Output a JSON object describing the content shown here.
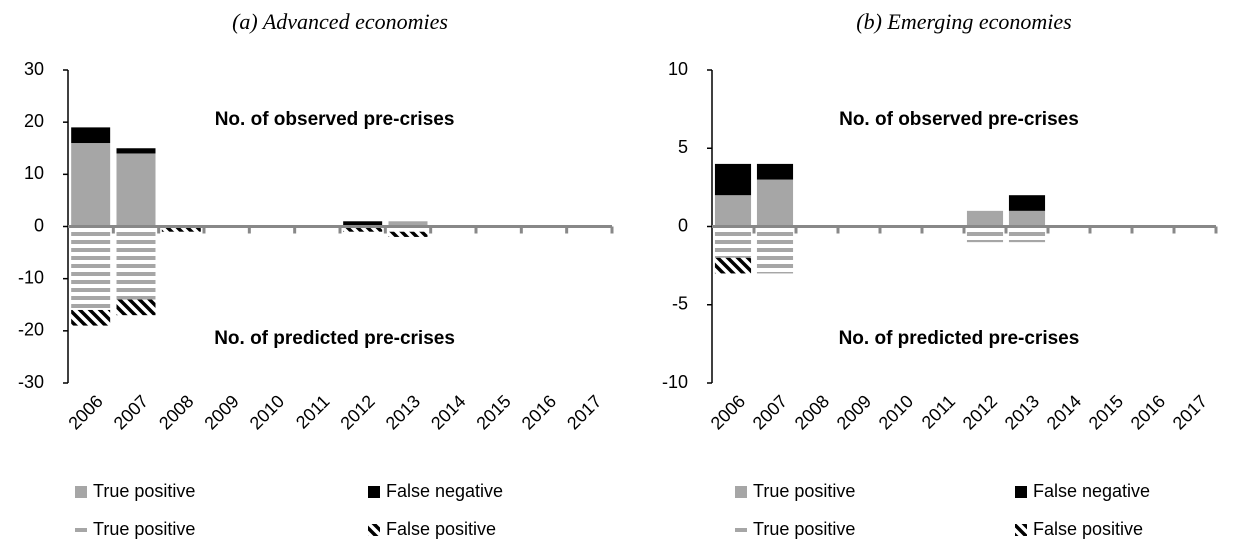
{
  "chart_data": [
    {
      "type": "bar",
      "stacked": true,
      "title": "(a) Advanced economies",
      "annotations": [
        "No. of observed pre-crises",
        "No. of predicted pre-crises"
      ],
      "categories": [
        "2006",
        "2007",
        "2008",
        "2009",
        "2010",
        "2011",
        "2012",
        "2013",
        "2014",
        "2015",
        "2016",
        "2017"
      ],
      "series": [
        {
          "name": "True positive",
          "color": "#a6a6a6",
          "values": [
            16,
            14,
            0,
            0,
            0,
            0,
            0,
            1,
            0,
            0,
            0,
            0
          ]
        },
        {
          "name": "False negative",
          "color": "#000000",
          "values": [
            3,
            1,
            0,
            0,
            0,
            0,
            1,
            0,
            0,
            0,
            0,
            0
          ]
        },
        {
          "name": "True positive",
          "color": "#a6a6a6",
          "pattern": "horizontal",
          "values": [
            -16,
            -14,
            0,
            0,
            0,
            0,
            0,
            -1,
            0,
            0,
            0,
            0
          ]
        },
        {
          "name": "False positive",
          "color": "#000000",
          "pattern": "diagonal",
          "values": [
            -3,
            -3,
            -1,
            0,
            0,
            0,
            -1,
            -1,
            0,
            0,
            0,
            0
          ]
        }
      ],
      "ylim": [
        -30,
        30
      ],
      "yticks": [
        30,
        20,
        10,
        0,
        -10,
        -20,
        -30
      ]
    },
    {
      "type": "bar",
      "stacked": true,
      "title": "(b) Emerging economies",
      "annotations": [
        "No. of observed pre-crises",
        "No. of predicted pre-crises"
      ],
      "categories": [
        "2006",
        "2007",
        "2008",
        "2009",
        "2010",
        "2011",
        "2012",
        "2013",
        "2014",
        "2015",
        "2016",
        "2017"
      ],
      "series": [
        {
          "name": "True positive",
          "color": "#a6a6a6",
          "values": [
            2,
            3,
            0,
            0,
            0,
            0,
            1,
            1,
            0,
            0,
            0,
            0
          ]
        },
        {
          "name": "False negative",
          "color": "#000000",
          "values": [
            2,
            1,
            0,
            0,
            0,
            0,
            0,
            1,
            0,
            0,
            0,
            0
          ]
        },
        {
          "name": "True positive",
          "color": "#a6a6a6",
          "pattern": "horizontal",
          "values": [
            -2,
            -3,
            0,
            0,
            0,
            0,
            -1,
            -1,
            0,
            0,
            0,
            0
          ]
        },
        {
          "name": "False positive",
          "color": "#000000",
          "pattern": "diagonal",
          "values": [
            -1,
            0,
            0,
            0,
            0,
            0,
            0,
            0,
            0,
            0,
            0,
            0
          ]
        }
      ],
      "ylim": [
        -10,
        10
      ],
      "yticks": [
        10,
        5,
        0,
        -5,
        -10
      ]
    }
  ]
}
